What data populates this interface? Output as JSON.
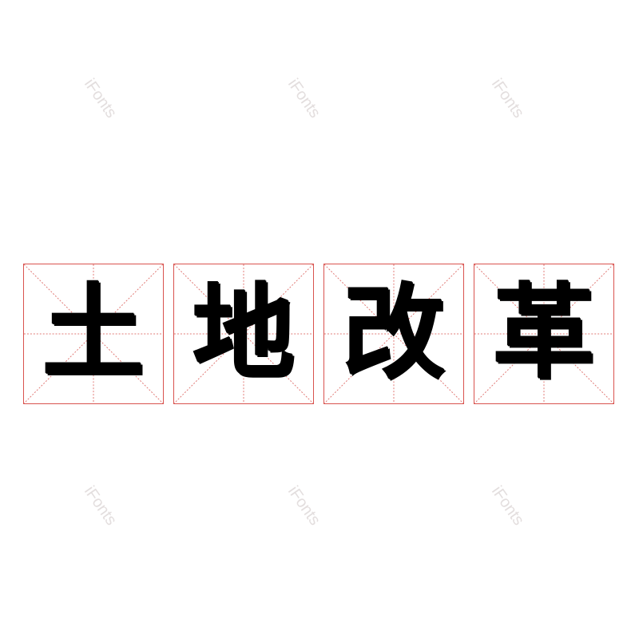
{
  "characters": [
    "土",
    "地",
    "改",
    "革"
  ],
  "watermark": "iFonts",
  "colors": {
    "grid": "#d9534f",
    "ink": "#000000",
    "watermark": "#e3dede"
  }
}
